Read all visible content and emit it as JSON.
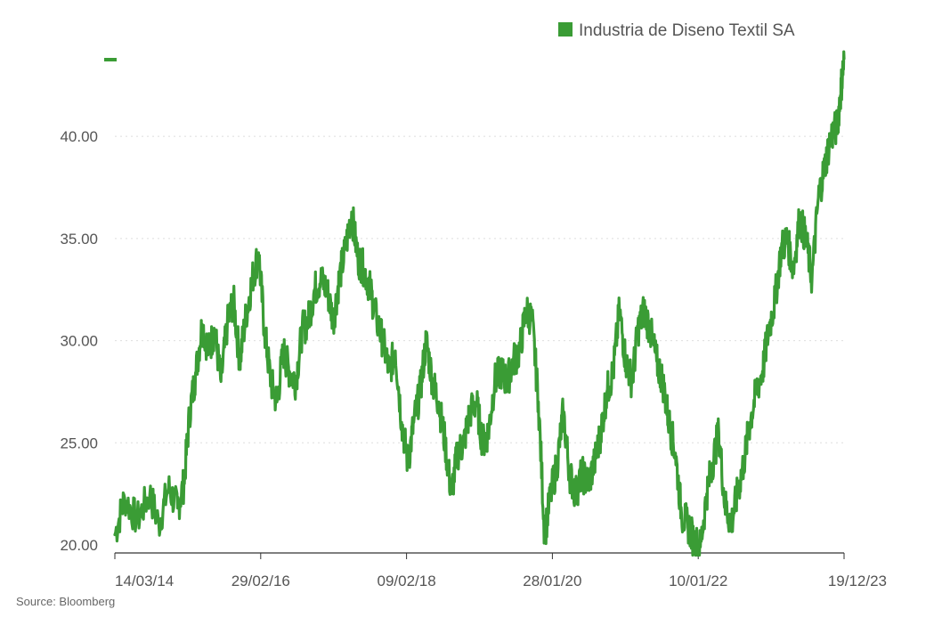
{
  "colors": {
    "series": "#3a9c35",
    "grid": "#dddddd",
    "axis": "#333333",
    "text": "#555555"
  },
  "source": "Source: Bloomberg",
  "chart_data": {
    "type": "line",
    "title": "",
    "xlabel": "",
    "ylabel": "",
    "ylim": [
      20,
      43.8
    ],
    "xlim": [
      "2014-03-14",
      "2023-12-19"
    ],
    "yticks": [
      "20.00",
      "25.00",
      "30.00",
      "35.00",
      "40.00"
    ],
    "xticks": [
      "14/03/14",
      "29/02/16",
      "09/02/18",
      "28/01/20",
      "10/01/22",
      "19/12/23"
    ],
    "legend": {
      "position": "top-right"
    },
    "grid": "horizontal dotted",
    "series": [
      {
        "name": "Industria de Diseno Textil SA",
        "x": [
          "2014-03-14",
          "2014-05-01",
          "2014-07-01",
          "2014-09-01",
          "2014-10-15",
          "2014-12-01",
          "2015-01-15",
          "2015-02-15",
          "2015-03-15",
          "2015-04-15",
          "2015-05-15",
          "2015-06-15",
          "2015-07-15",
          "2015-08-15",
          "2015-09-15",
          "2015-10-15",
          "2015-11-15",
          "2015-12-15",
          "2016-01-15",
          "2016-02-15",
          "2016-03-15",
          "2016-04-15",
          "2016-05-15",
          "2016-06-15",
          "2016-07-15",
          "2016-08-15",
          "2016-09-15",
          "2016-10-15",
          "2016-11-15",
          "2016-12-15",
          "2017-01-15",
          "2017-02-15",
          "2017-03-15",
          "2017-04-15",
          "2017-05-15",
          "2017-06-15",
          "2017-07-15",
          "2017-08-15",
          "2017-09-15",
          "2017-10-15",
          "2017-11-15",
          "2017-12-15",
          "2018-01-15",
          "2018-02-15",
          "2018-03-15",
          "2018-04-15",
          "2018-05-15",
          "2018-06-15",
          "2018-07-15",
          "2018-08-15",
          "2018-09-15",
          "2018-10-15",
          "2018-11-15",
          "2018-12-15",
          "2019-01-15",
          "2019-02-15",
          "2019-03-15",
          "2019-04-15",
          "2019-05-15",
          "2019-06-15",
          "2019-07-15",
          "2019-08-15",
          "2019-09-15",
          "2019-10-15",
          "2019-11-15",
          "2019-12-15",
          "2020-01-15",
          "2020-02-15",
          "2020-03-15",
          "2020-04-15",
          "2020-05-15",
          "2020-06-15",
          "2020-07-15",
          "2020-08-15",
          "2020-09-15",
          "2020-10-15",
          "2020-11-15",
          "2020-12-15",
          "2021-01-15",
          "2021-02-15",
          "2021-03-15",
          "2021-04-15",
          "2021-05-15",
          "2021-06-15",
          "2021-07-15",
          "2021-08-15",
          "2021-09-15",
          "2021-10-15",
          "2021-11-15",
          "2021-12-15",
          "2022-01-15",
          "2022-02-15",
          "2022-03-15",
          "2022-04-15",
          "2022-05-15",
          "2022-06-15",
          "2022-07-15",
          "2022-08-15",
          "2022-09-15",
          "2022-10-15",
          "2022-11-15",
          "2022-12-15",
          "2023-01-15",
          "2023-02-15",
          "2023-03-15",
          "2023-04-15",
          "2023-05-15",
          "2023-06-15",
          "2023-07-15",
          "2023-08-15",
          "2023-09-15",
          "2023-10-15",
          "2023-11-15",
          "2023-12-01",
          "2023-12-19"
        ],
        "values": [
          20.5,
          22.3,
          21.2,
          22.5,
          21.0,
          22.8,
          21.8,
          23.0,
          26.5,
          28.5,
          30.8,
          29.5,
          30.5,
          28.0,
          30.8,
          32.0,
          29.0,
          31.2,
          33.0,
          34.3,
          30.5,
          28.0,
          27.0,
          29.5,
          28.5,
          28.0,
          30.5,
          31.0,
          32.5,
          33.0,
          32.5,
          31.0,
          33.0,
          34.5,
          36.3,
          34.0,
          33.5,
          32.5,
          31.0,
          30.0,
          28.5,
          29.5,
          26.0,
          24.0,
          26.0,
          27.5,
          30.0,
          28.0,
          27.0,
          25.0,
          22.5,
          24.5,
          25.0,
          26.5,
          27.0,
          25.0,
          25.5,
          28.0,
          28.5,
          28.0,
          29.0,
          29.5,
          31.5,
          31.0,
          27.0,
          20.5,
          22.5,
          24.0,
          26.5,
          23.5,
          22.5,
          23.5,
          23.0,
          24.0,
          25.5,
          27.5,
          28.5,
          31.5,
          29.0,
          28.0,
          30.5,
          31.5,
          30.5,
          29.0,
          28.0,
          26.0,
          24.5,
          21.5,
          21.0,
          20.2,
          19.9,
          22.5,
          24.0,
          25.5,
          22.0,
          21.0,
          22.5,
          24.0,
          26.0,
          27.5,
          28.5,
          30.5,
          32.0,
          34.5,
          35.0,
          33.5,
          36.0,
          35.0,
          33.0,
          37.0,
          38.5,
          40.0,
          40.5,
          42.0,
          43.8
        ]
      }
    ]
  }
}
